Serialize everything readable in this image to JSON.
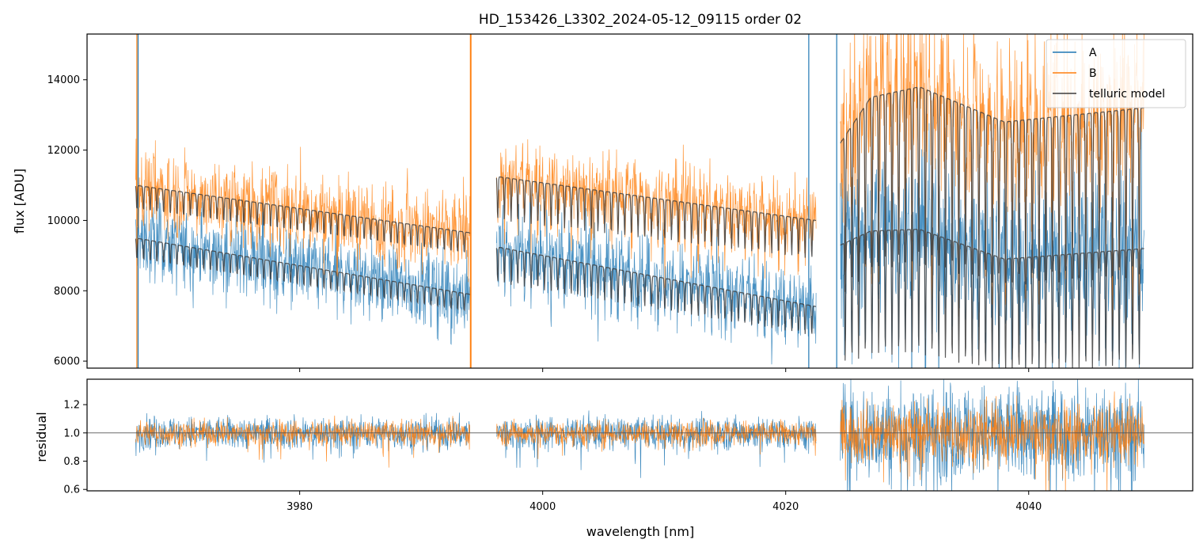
{
  "chart_data": [
    {
      "type": "line",
      "title": "HD_153426_L3302_2024-05-12_09115  order 02",
      "xlabel": "",
      "ylabel": "flux [ADU]",
      "xlim": [
        3962.5,
        4053.5
      ],
      "ylim": [
        5800,
        15300
      ],
      "xticks": [
        3980,
        4000,
        4020,
        4040
      ],
      "yticks": [
        6000,
        8000,
        10000,
        12000,
        14000
      ],
      "xtick_labels_shown": false,
      "grid": false,
      "legend": {
        "placement": "top-right",
        "entries": [
          "A",
          "B",
          "telluric model"
        ]
      },
      "segments": [
        [
          3966.5,
          3994.0
        ],
        [
          3996.2,
          4022.5
        ],
        [
          4024.5,
          4049.5
        ]
      ],
      "series": [
        {
          "name": "A",
          "color": "#1f77b4",
          "continuum": [
            {
              "x": 3966.5,
              "y": 9500
            },
            {
              "x": 3994.0,
              "y": 7900
            },
            {
              "x": 3996.2,
              "y": 9250
            },
            {
              "x": 4022.5,
              "y": 7550
            },
            {
              "x": 4024.5,
              "y": 9300
            },
            {
              "x": 4027.0,
              "y": 9700
            },
            {
              "x": 4031.0,
              "y": 9750
            },
            {
              "x": 4038.0,
              "y": 8900
            },
            {
              "x": 4049.5,
              "y": 9200
            }
          ],
          "noise_amplitude": [
            1000,
            1000,
            1900
          ]
        },
        {
          "name": "B",
          "color": "#ff7f0e",
          "continuum": [
            {
              "x": 3966.5,
              "y": 11000
            },
            {
              "x": 3994.0,
              "y": 9650
            },
            {
              "x": 3996.2,
              "y": 11250
            },
            {
              "x": 4022.5,
              "y": 10000
            },
            {
              "x": 4024.5,
              "y": 12200
            },
            {
              "x": 4027.0,
              "y": 13500
            },
            {
              "x": 4031.0,
              "y": 13800
            },
            {
              "x": 4038.0,
              "y": 12800
            },
            {
              "x": 4049.5,
              "y": 13200
            }
          ],
          "noise_amplitude": [
            1000,
            1000,
            2200
          ]
        },
        {
          "name": "telluric model",
          "color": "#3d3d3d",
          "line_spacing_nm": 0.55,
          "line_depth": [
            0.06,
            0.1,
            0.28
          ]
        }
      ],
      "spikes": [
        {
          "x": 3966.6,
          "series": "B"
        },
        {
          "x": 3966.7,
          "series": "A"
        },
        {
          "x": 3994.05,
          "series": "B"
        },
        {
          "x": 3994.1,
          "series": "B"
        },
        {
          "x": 4021.9,
          "series": "A"
        },
        {
          "x": 4024.2,
          "series": "A"
        }
      ]
    },
    {
      "type": "line",
      "title": "",
      "xlabel": "wavelength [nm]",
      "ylabel": "residual",
      "xlim": [
        3962.5,
        4053.5
      ],
      "ylim": [
        0.59,
        1.38
      ],
      "xticks": [
        3980,
        4000,
        4020,
        4040
      ],
      "xtick_labels": [
        "3980",
        "4000",
        "4020",
        "4040"
      ],
      "yticks": [
        0.6,
        0.8,
        1.0,
        1.2
      ],
      "ytick_labels": [
        "0.6",
        "0.8",
        "1.0",
        "1.2"
      ],
      "reference_line": 1.0,
      "grid": false,
      "series": [
        {
          "name": "A",
          "color": "#1f77b4",
          "center": 1.0,
          "noise_amplitude": [
            0.13,
            0.13,
            0.38
          ]
        },
        {
          "name": "B",
          "color": "#ff7f0e",
          "center": 1.0,
          "noise_amplitude": [
            0.1,
            0.1,
            0.24
          ]
        }
      ]
    }
  ]
}
